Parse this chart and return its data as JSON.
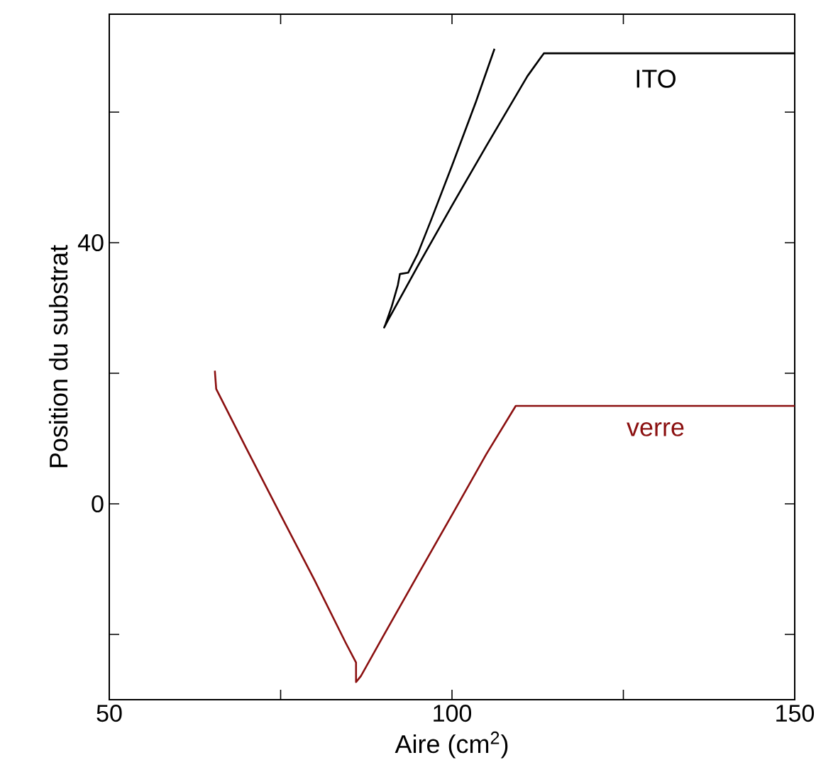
{
  "chart_data": {
    "type": "line",
    "xlabel": "Aire (cm$^{2}$)",
    "ylabel": "Position du substrat",
    "xlim": [
      50,
      150
    ],
    "ylim": [
      -30,
      75
    ],
    "xticks": [
      50,
      {
        "value": 75,
        "label": null
      },
      100,
      {
        "value": 125,
        "label": null
      },
      150
    ],
    "yticks": [
      {
        "value": -20,
        "label": null
      },
      0,
      {
        "value": 20,
        "label": null
      },
      40,
      {
        "value": 60,
        "label": null
      }
    ],
    "grid": false,
    "legend": false,
    "marker": "none",
    "line_style": "solid",
    "series": [
      {
        "name": "ITO",
        "color": "#000000",
        "x": [
          106.2,
          103.5,
          100,
          97,
          95,
          93.6,
          92.4,
          92.1,
          91.2,
          90.3,
          90.1,
          90.6,
          95,
          100,
          105,
          111,
          113.4,
          150
        ],
        "values": [
          69.7,
          61.6,
          51.8,
          43.6,
          38.3,
          35.4,
          35.2,
          33.5,
          30.2,
          27.5,
          27,
          28,
          36.4,
          45.7,
          54.8,
          65.5,
          69,
          69
        ]
      },
      {
        "name": "verre",
        "color": "#8b1010",
        "x": [
          65.4,
          65.6,
          70,
          75,
          79.9,
          84.5,
          86,
          86,
          86.7,
          90,
          95,
          100,
          105,
          109.3,
          150
        ],
        "values": [
          20.4,
          17.6,
          8.5,
          -1.7,
          -11.6,
          -21.3,
          -24.3,
          -27.3,
          -26.4,
          -20.2,
          -10.9,
          -1.7,
          7.6,
          15,
          15
        ]
      }
    ]
  }
}
